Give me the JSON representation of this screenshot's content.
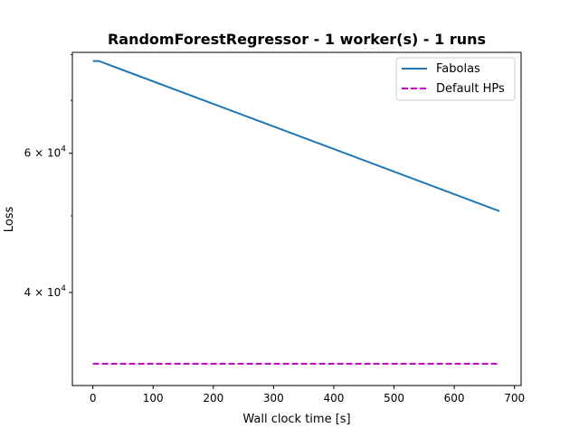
{
  "chart_data": {
    "type": "line",
    "title": "RandomForestRegressor - 1 worker(s) - 1 runs",
    "xlabel": "Wall clock time [s]",
    "ylabel": "Loss",
    "yscale": "log",
    "xlim": [
      -34,
      711
    ],
    "ylim": [
      30500,
      80500
    ],
    "x_ticks": [
      0,
      100,
      200,
      300,
      400,
      500,
      600,
      700
    ],
    "y_ticks": [
      {
        "value": 40000,
        "mantissa": "4",
        "base": "10",
        "exp": "4"
      },
      {
        "value": 60000,
        "mantissa": "6",
        "base": "10",
        "exp": "4"
      }
    ],
    "y_minor_ticks": [
      30000,
      50000,
      70000,
      80000
    ],
    "grid": false,
    "legend_position": "top-right",
    "series": [
      {
        "name": "Fabolas",
        "color": "#1f77b4",
        "linestyle": "solid",
        "x": [
          0,
          10,
          675
        ],
        "y": [
          78500,
          78500,
          50700
        ]
      },
      {
        "name": "Default HPs",
        "color": "#bf00bf",
        "linestyle": "dashed",
        "x": [
          0,
          675
        ],
        "y": [
          32500,
          32500
        ]
      }
    ]
  }
}
